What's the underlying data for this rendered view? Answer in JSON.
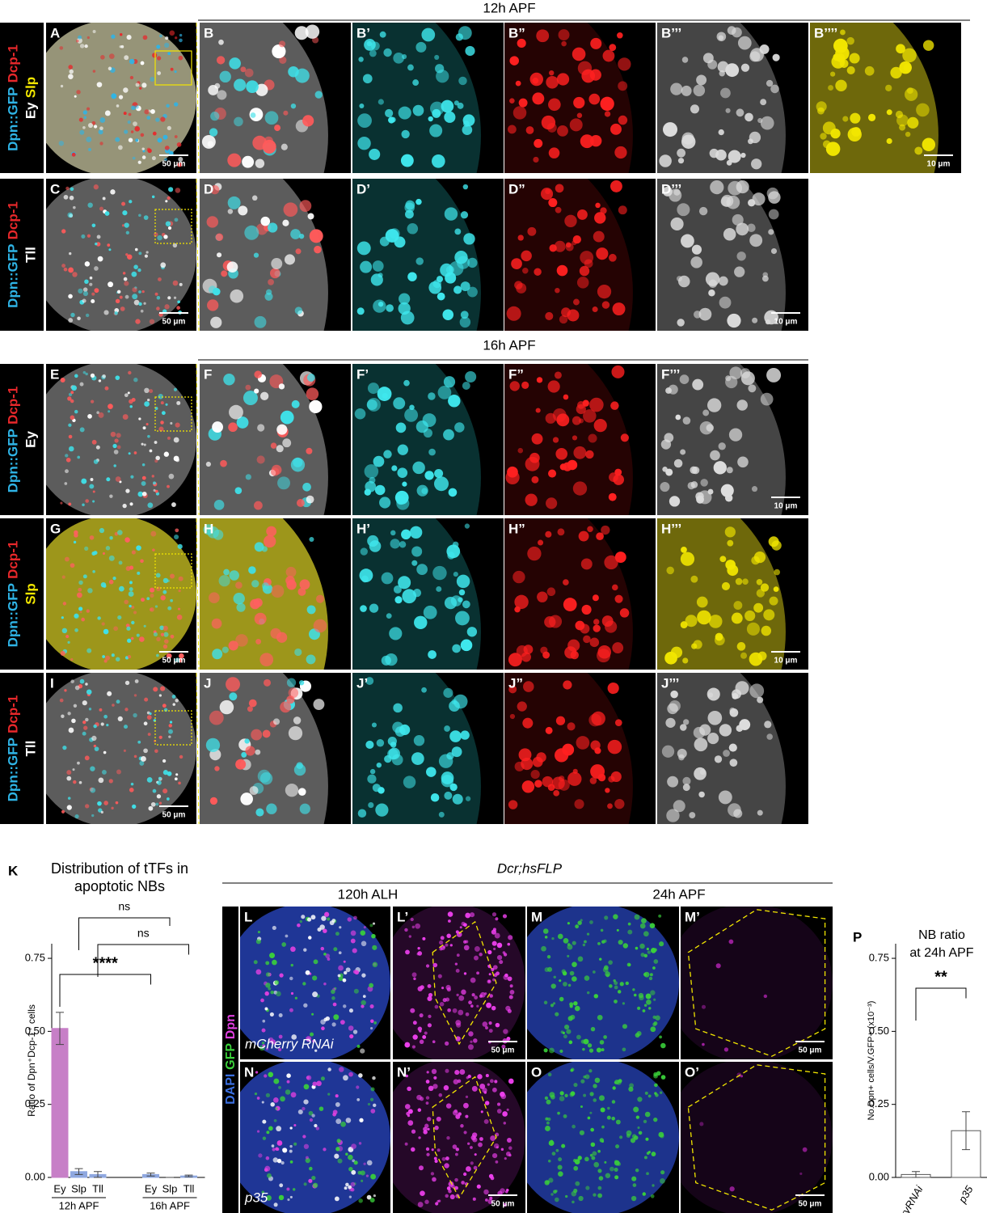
{
  "sections": {
    "top": "12h APF",
    "middle": "16h APF"
  },
  "rows": [
    {
      "stain": [
        [
          {
            "text": "Dpn::GFP",
            "color": "#2fb4e6"
          },
          {
            "text": "Dcp-1",
            "color": "#e8282b"
          }
        ],
        [
          {
            "text": "Ey",
            "color": "#ffffff"
          },
          {
            "text": "Slp",
            "color": "#f2e600"
          }
        ]
      ],
      "panels": [
        {
          "label": "A",
          "scale": "50 μm"
        },
        {
          "label": "B"
        },
        {
          "label": "B’"
        },
        {
          "label": "B”"
        },
        {
          "label": "B’’’"
        },
        {
          "label": "B’’’’",
          "scale": "10 μm"
        }
      ]
    },
    {
      "stain": [
        [
          {
            "text": "Dpn::GFP",
            "color": "#2fb4e6"
          },
          {
            "text": "Dcp-1",
            "color": "#e8282b"
          }
        ],
        [
          {
            "text": "Tll",
            "color": "#ffffff"
          }
        ]
      ],
      "panels": [
        {
          "label": "C",
          "scale": "50 μm"
        },
        {
          "label": "D"
        },
        {
          "label": "D’"
        },
        {
          "label": "D”"
        },
        {
          "label": "D’’’",
          "scale": "10 μm"
        }
      ]
    },
    {
      "stain": [
        [
          {
            "text": "Dpn::GFP",
            "color": "#2fb4e6"
          },
          {
            "text": "Dcp-1",
            "color": "#e8282b"
          }
        ],
        [
          {
            "text": "Ey",
            "color": "#ffffff"
          }
        ]
      ],
      "panels": [
        {
          "label": "E"
        },
        {
          "label": "F"
        },
        {
          "label": "F’"
        },
        {
          "label": "F”"
        },
        {
          "label": "F’’’",
          "scale": "10 μm"
        }
      ]
    },
    {
      "stain": [
        [
          {
            "text": "Dpn::GFP",
            "color": "#2fb4e6"
          },
          {
            "text": "Dcp-1",
            "color": "#e8282b"
          }
        ],
        [
          {
            "text": "Slp",
            "color": "#f2e600"
          }
        ]
      ],
      "panels": [
        {
          "label": "G",
          "scale": "50 μm"
        },
        {
          "label": "H"
        },
        {
          "label": "H’"
        },
        {
          "label": "H”"
        },
        {
          "label": "H’’’",
          "scale": "10 μm"
        }
      ]
    },
    {
      "stain": [
        [
          {
            "text": "Dpn::GFP",
            "color": "#2fb4e6"
          },
          {
            "text": "Dcp-1",
            "color": "#e8282b"
          }
        ],
        [
          {
            "text": "Tll",
            "color": "#ffffff"
          }
        ]
      ],
      "panels": [
        {
          "label": "I",
          "scale": "50 μm"
        },
        {
          "label": "J"
        },
        {
          "label": "J’"
        },
        {
          "label": "J”"
        },
        {
          "label": "J’’’"
        }
      ]
    }
  ],
  "bottom": {
    "genotype": "Dcr;hsFLP",
    "columns": [
      "120h ALH",
      "24h APF"
    ],
    "stain": [
      {
        "text": "DAPI",
        "color": "#3a6fe0"
      },
      {
        "text": "GFP",
        "color": "#3ad13a"
      },
      {
        "text": "Dpn",
        "color": "#e040e0"
      }
    ],
    "rows": [
      {
        "panels": [
          {
            "label": "L",
            "note": "mCherry RNAi"
          },
          {
            "label": "L’",
            "scale": "50 μm"
          },
          {
            "label": "M"
          },
          {
            "label": "M’",
            "scale": "50 μm"
          }
        ]
      },
      {
        "panels": [
          {
            "label": "N",
            "note": "p35"
          },
          {
            "label": "N’",
            "scale": "50 μm"
          },
          {
            "label": "O"
          },
          {
            "label": "O’",
            "scale": "50 μm"
          }
        ]
      }
    ]
  },
  "chart_data": [
    {
      "type": "bar",
      "panel": "K",
      "title": [
        "Distribution of tTFs in",
        "apoptotic NBs"
      ],
      "ylabel": "Ratio of Dpn⁺Dcp-1⁺ cells",
      "categories": [
        "Ey",
        "Slp",
        "Tll",
        "Ey",
        "Slp",
        "Tll"
      ],
      "groups": [
        "12h APF",
        "16h APF"
      ],
      "values": [
        0.51,
        0.02,
        0.01,
        0.01,
        0,
        0.005
      ],
      "errors": [
        0.055,
        0.01,
        0.01,
        0.005,
        0,
        0.003
      ],
      "colors": [
        "#c77fc7",
        "#8fa8e0",
        "#8fa8e0",
        "#8fa8e0",
        "#8fa8e0",
        "#8fa8e0"
      ],
      "ylim": [
        0,
        0.8
      ],
      "yticks": [
        {
          "value": 0,
          "label": "0.00"
        },
        {
          "value": 0.25,
          "label": "0.25"
        },
        {
          "value": 0.5,
          "label": "0.50"
        },
        {
          "value": 0.75,
          "label": "0.75"
        }
      ],
      "annotations": [
        "ns",
        "ns",
        "****"
      ]
    },
    {
      "type": "bar",
      "panel": "P",
      "title": [
        "NB ratio",
        "at 24h APF"
      ],
      "ylabel": "No.Dpn+ cells/V.GFP+ (x10⁻³)",
      "categories": [
        "mCherryRNAi",
        "p35"
      ],
      "values": [
        0.01,
        0.16
      ],
      "errors": [
        0.01,
        0.065
      ],
      "colors": [
        "#ffffff",
        "#ffffff"
      ],
      "ylim": [
        0,
        0.8
      ],
      "yticks": [
        {
          "value": 0,
          "label": "0.00"
        },
        {
          "value": 0.25,
          "label": "0.25"
        },
        {
          "value": 0.5,
          "label": "0.50"
        },
        {
          "value": 0.75,
          "label": "0.75"
        }
      ],
      "annotations": [
        "**"
      ]
    }
  ]
}
